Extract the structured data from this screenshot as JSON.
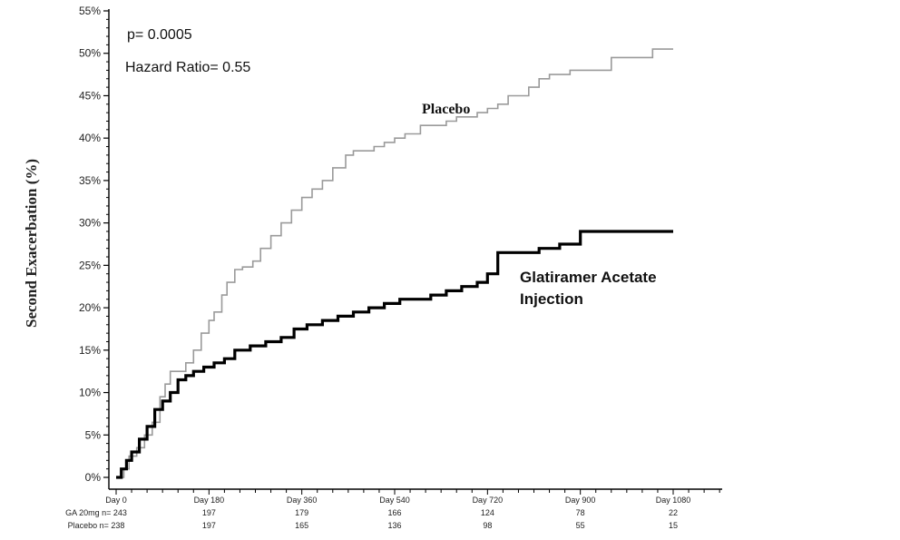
{
  "chart_data": {
    "type": "line",
    "ylabel": "Second Exacerbation (%)",
    "xlabel": "",
    "ylim": [
      0,
      55
    ],
    "xlim": [
      0,
      1080
    ],
    "y_ticks": [
      "0%",
      "5%",
      "10%",
      "15%",
      "20%",
      "25%",
      "30%",
      "35%",
      "40%",
      "45%",
      "50%",
      "55%"
    ],
    "x_ticks": [
      {
        "label": "Day 0",
        "value": 0
      },
      {
        "label": "Day 180",
        "value": 180
      },
      {
        "label": "Day 360",
        "value": 360
      },
      {
        "label": "Day 540",
        "value": 540
      },
      {
        "label": "Day 720",
        "value": 720
      },
      {
        "label": "Day 900",
        "value": 900
      },
      {
        "label": "Day 1080",
        "value": 1080
      }
    ],
    "annotations": {
      "p_value": "p= 0.0005",
      "hazard_ratio": "Hazard Ratio= 0.55"
    },
    "series": [
      {
        "name": "Placebo",
        "label_lines": [
          "Placebo"
        ],
        "color": "#9a9a9a",
        "x": [
          0,
          15,
          25,
          40,
          55,
          70,
          85,
          95,
          105,
          115,
          135,
          150,
          165,
          180,
          190,
          205,
          215,
          230,
          245,
          265,
          280,
          300,
          320,
          340,
          360,
          380,
          400,
          420,
          445,
          460,
          480,
          500,
          520,
          540,
          560,
          590,
          610,
          640,
          660,
          700,
          720,
          740,
          760,
          800,
          820,
          840,
          860,
          880,
          900,
          960,
          1040,
          1080
        ],
        "y": [
          0,
          1,
          2.5,
          3.5,
          5,
          6.5,
          9.5,
          11,
          12.5,
          12.5,
          13.5,
          15,
          17,
          18.5,
          19.5,
          21.5,
          23,
          24.5,
          24.8,
          25.5,
          27,
          28.5,
          30,
          31.5,
          33,
          34,
          35,
          36.5,
          38,
          38.5,
          38.5,
          39,
          39.5,
          40,
          40.5,
          41.5,
          41.5,
          42,
          42.5,
          43,
          43.5,
          44,
          45,
          46,
          47,
          47.5,
          47.5,
          48,
          48,
          49.5,
          50.5,
          50.5
        ]
      },
      {
        "name": "Glatiramer Acetate Injection",
        "label_lines": [
          "Glatiramer Acetate",
          "Injection"
        ],
        "color": "#000000",
        "x": [
          0,
          10,
          20,
          30,
          45,
          60,
          75,
          90,
          105,
          120,
          135,
          150,
          170,
          190,
          210,
          230,
          260,
          290,
          320,
          345,
          370,
          400,
          430,
          460,
          490,
          520,
          550,
          580,
          610,
          640,
          670,
          700,
          720,
          740,
          780,
          820,
          860,
          900,
          960,
          1080
        ],
        "y": [
          0,
          1,
          2,
          3,
          4.5,
          6,
          8,
          9,
          10,
          11.5,
          12,
          12.5,
          13,
          13.5,
          14,
          15,
          15.5,
          16,
          16.5,
          17.5,
          18,
          18.5,
          19,
          19.5,
          20,
          20.5,
          21,
          21,
          21.5,
          22,
          22.5,
          23,
          24,
          26.5,
          26.5,
          27,
          27.5,
          29,
          29,
          29
        ]
      }
    ]
  },
  "risk_table": {
    "rows": [
      {
        "label": "GA 20mg n= 243",
        "values": [
          "197",
          "179",
          "166",
          "124",
          "78",
          "22"
        ]
      },
      {
        "label": "Placebo n= 238",
        "values": [
          "197",
          "165",
          "136",
          "98",
          "55",
          "15"
        ]
      }
    ]
  }
}
